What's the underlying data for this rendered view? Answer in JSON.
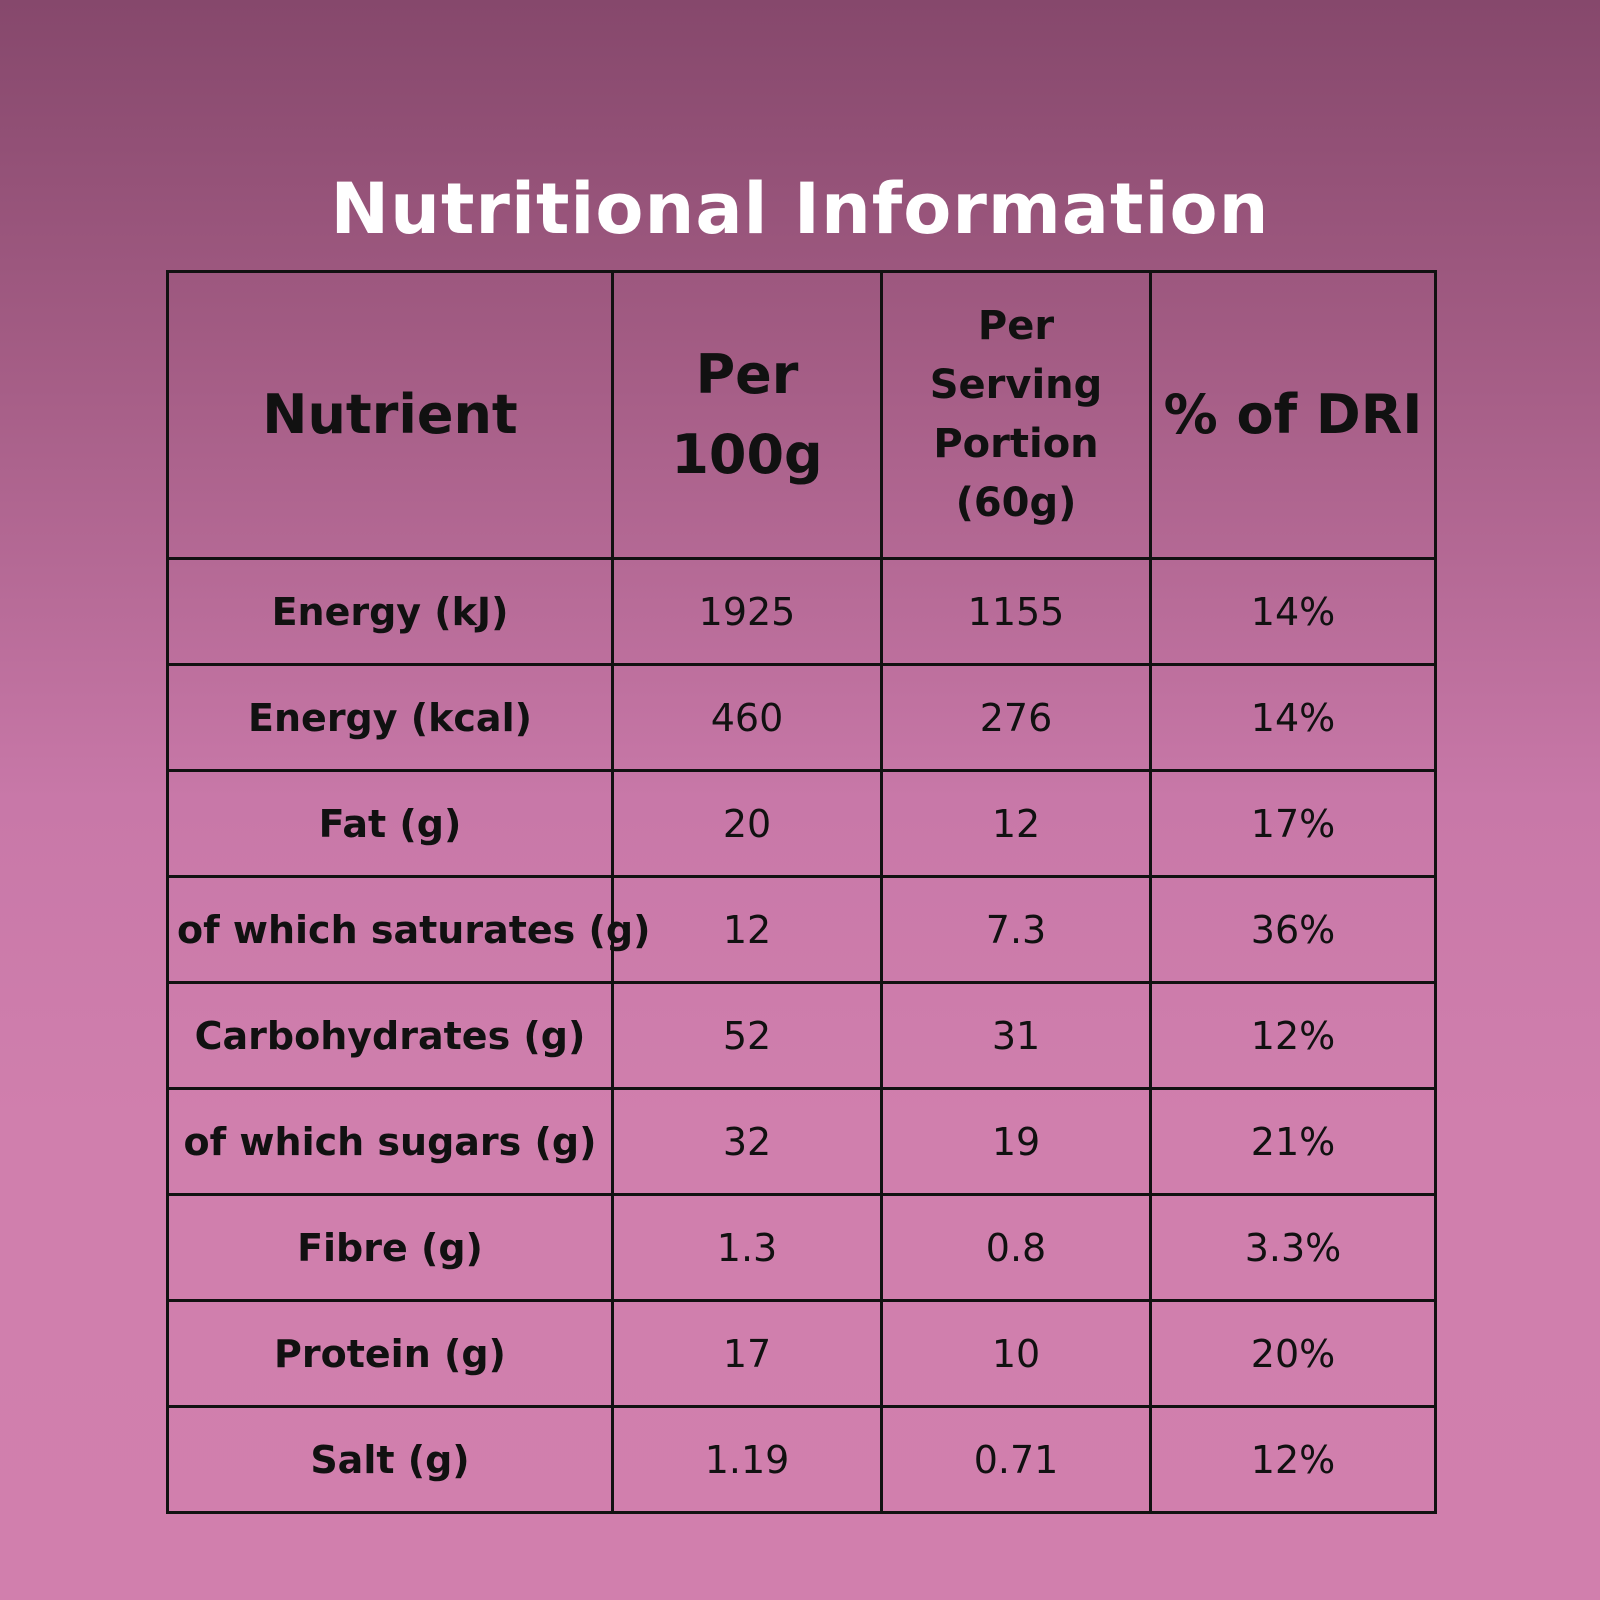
{
  "title": "Nutritional Information",
  "table": {
    "headers": {
      "nutrient": "Nutrient",
      "per_100g_line1": "Per",
      "per_100g_line2": "100g",
      "per_serving_line1": "Per",
      "per_serving_line2": "Serving",
      "per_serving_line3": "Portion",
      "per_serving_line4": "(60g)",
      "dri": "% of DRI"
    },
    "rows": [
      {
        "nutrient": "Energy (kJ)",
        "per_100g": "1925",
        "per_serving": "1155",
        "dri": "14%"
      },
      {
        "nutrient": "Energy (kcal)",
        "per_100g": "460",
        "per_serving": "276",
        "dri": "14%"
      },
      {
        "nutrient": "Fat (g)",
        "per_100g": "20",
        "per_serving": "12",
        "dri": "17%"
      },
      {
        "nutrient": "of which saturates (g)",
        "per_100g": "12",
        "per_serving": "7.3",
        "dri": "36%"
      },
      {
        "nutrient": "Carbohydrates (g)",
        "per_100g": "52",
        "per_serving": "31",
        "dri": "12%"
      },
      {
        "nutrient": "of which sugars (g)",
        "per_100g": "32",
        "per_serving": "19",
        "dri": "21%"
      },
      {
        "nutrient": "Fibre (g)",
        "per_100g": "1.3",
        "per_serving": "0.8",
        "dri": "3.3%"
      },
      {
        "nutrient": "Protein (g)",
        "per_100g": "17",
        "per_serving": "10",
        "dri": "20%"
      },
      {
        "nutrient": "Salt (g)",
        "per_100g": "1.19",
        "per_serving": "0.71",
        "dri": "12%"
      }
    ]
  },
  "colors": {
    "title_text": "#ffffff",
    "table_text": "#111111",
    "border": "#111111",
    "background_top": "#86486c",
    "background_bottom": "#d17fad"
  }
}
